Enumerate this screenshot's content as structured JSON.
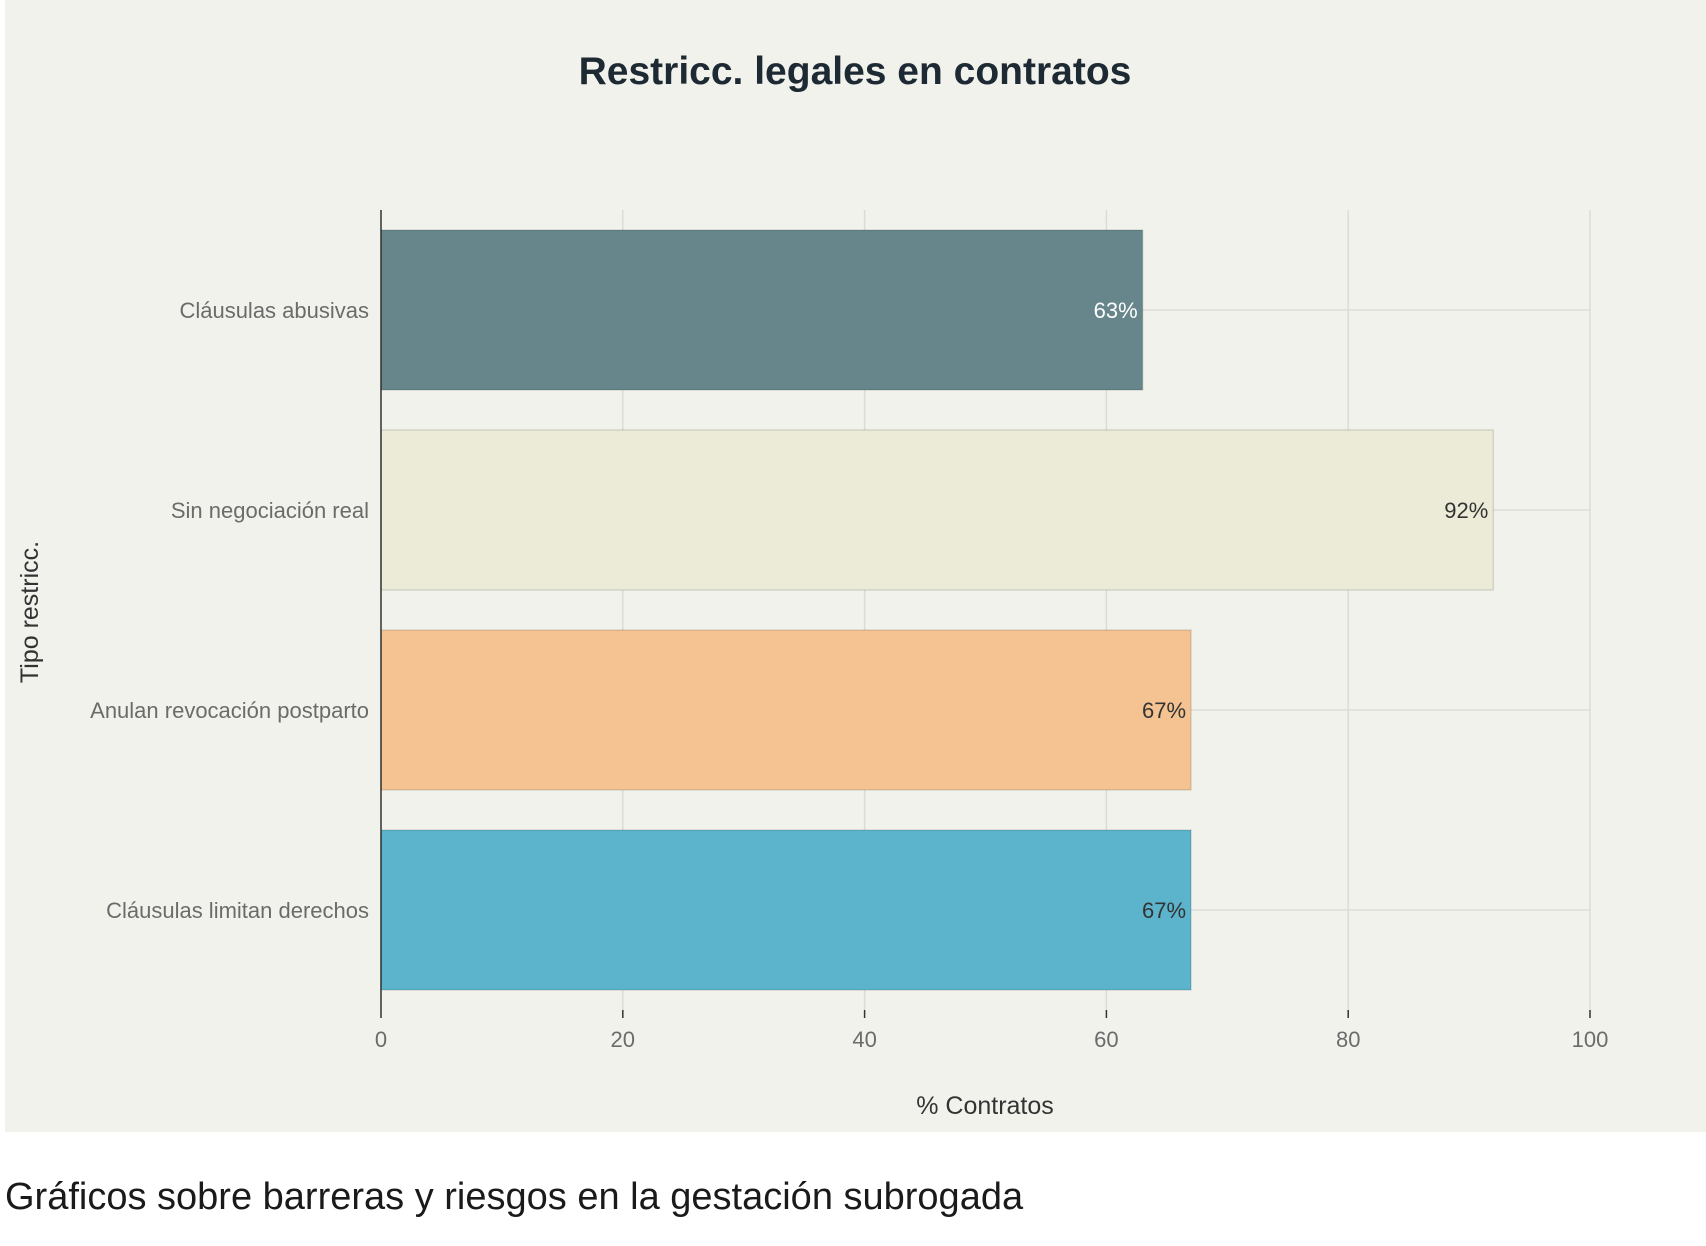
{
  "caption": "Gráficos sobre barreras y riesgos en la gestación subrogada",
  "chart_data": {
    "type": "bar",
    "orientation": "horizontal",
    "title": "Restricc. legales en contratos",
    "xlabel": "% Contratos",
    "ylabel": "Tipo restricc.",
    "xlim": [
      0,
      100
    ],
    "xticks": [
      0,
      20,
      40,
      60,
      80,
      100
    ],
    "grid": true,
    "categories": [
      "Cláusulas abusivas",
      "Sin negociación real",
      "Anulan revocación postparto",
      "Cláusulas limitan derechos"
    ],
    "values": [
      63,
      92,
      67,
      67
    ],
    "data_labels": [
      "63%",
      "92%",
      "67%",
      "67%"
    ],
    "colors": [
      "#67868c",
      "#ecebd8",
      "#f5c391",
      "#5bb4cb"
    ],
    "label_colors": [
      "#ffffff",
      "#333333",
      "#333333",
      "#333333"
    ]
  }
}
